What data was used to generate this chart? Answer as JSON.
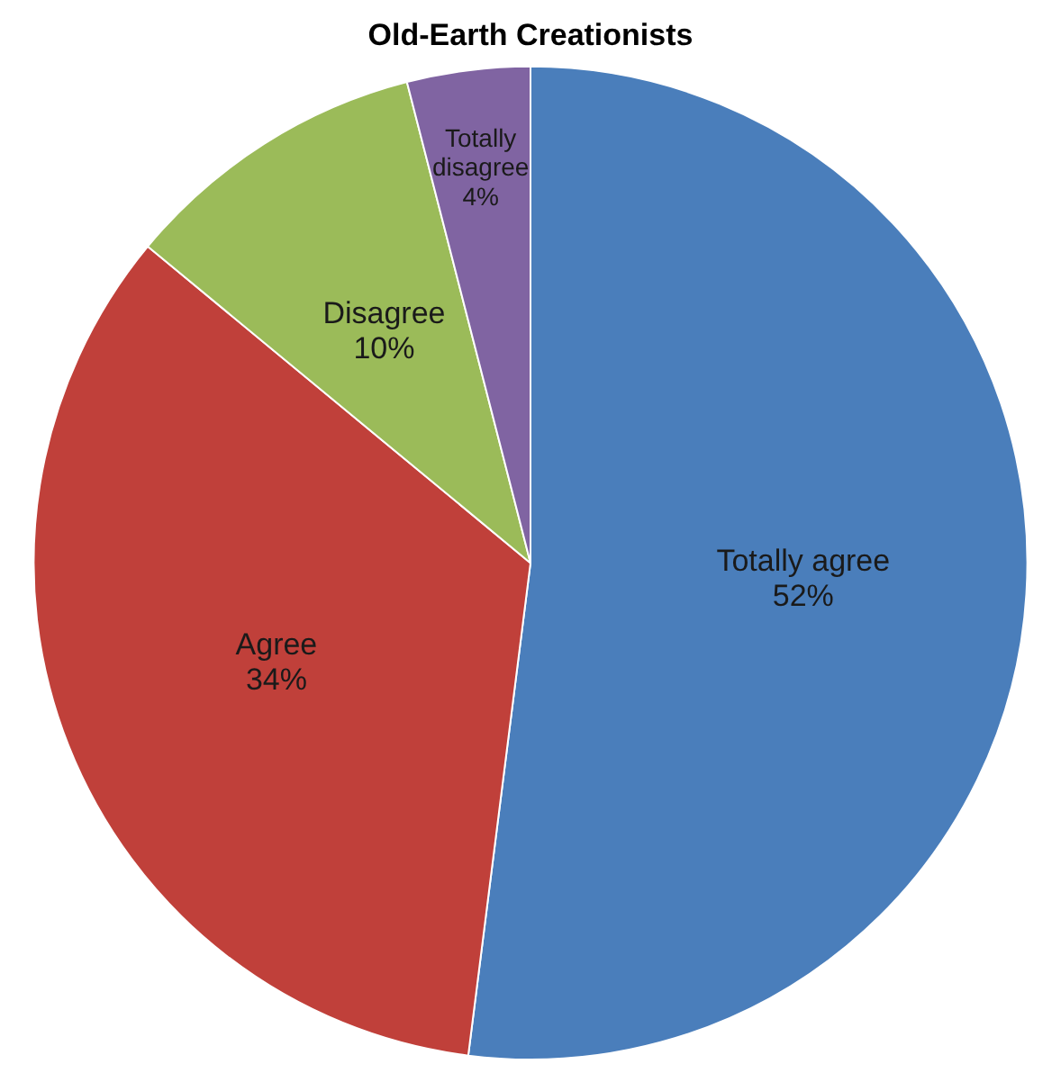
{
  "chart_data": {
    "type": "pie",
    "title": "Old-Earth Creationists",
    "categories": [
      "Totally agree",
      "Agree",
      "Disagree",
      "Totally disagree"
    ],
    "values": [
      52,
      34,
      10,
      4
    ],
    "value_labels": [
      "52%",
      "34%",
      "10%",
      "4%"
    ],
    "colors": [
      "#4a7ebb",
      "#c0403a",
      "#9bbb59",
      "#8064a2"
    ],
    "legend": false
  }
}
